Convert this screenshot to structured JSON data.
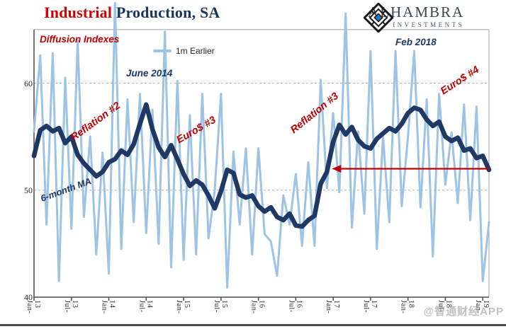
{
  "header": {
    "title_red": "Industrial",
    "title_rest": " Production, SA"
  },
  "logo": {
    "name": "ALHAMBRA",
    "sub": "INVESTMENTS"
  },
  "legend": {
    "label": "1m Earlier"
  },
  "annotations": {
    "diffusion_indexes": "Diffusion Indexes",
    "june_2014": "June 2014",
    "feb_2018": "Feb 2018",
    "reflation_2": "Reflation #2",
    "euro_3": "Euro$ #3",
    "reflation_3": "Reflation #3",
    "euro_4": "Euro$ #4",
    "six_month_ma": "6-month MA"
  },
  "watermark": "@智通财经APP",
  "colors": {
    "light_blue": "#9DC3E6",
    "navy": "#1F3864",
    "red_annotation": "#C00000",
    "arrow_red": "#C00000",
    "title_red": "#D40000",
    "title_navy": "#17365D",
    "gridline": "#B3B3B3",
    "axis": "#4D4D4D",
    "frame": "#A0A0A0"
  },
  "chart_data": {
    "type": "line",
    "title": "Industrial Production, SA",
    "subtitle": "Diffusion Indexes",
    "x_start": "Jan-2013",
    "x_end": "Feb-2019",
    "x_tick_labels": [
      "Jan-13",
      "Jul-13",
      "Jan-14",
      "Jul-14",
      "Jan-15",
      "Jul-15",
      "Jan-16",
      "Jul-16",
      "Jan-17",
      "Jul-17",
      "Jan-18",
      "Jul-18",
      "Jan-19"
    ],
    "y_ticks": [
      40,
      50,
      60
    ],
    "ylim": [
      40,
      65
    ],
    "gridlines": [
      50,
      60
    ],
    "grid": "dashed-horizontal",
    "legend_position": "top-center",
    "series": [
      {
        "name": "1m Earlier",
        "color": "#9DC3E6",
        "width": 3,
        "values": [
          55.5,
          62.6,
          46.8,
          62.8,
          41.5,
          60.5,
          46.4,
          64.0,
          47.5,
          55.0,
          44.0,
          53.5,
          42.2,
          67.5,
          44.5,
          58.5,
          47.0,
          59.0,
          46.0,
          57.5,
          45.0,
          64.8,
          42.8,
          60.2,
          43.5,
          57.0,
          44.0,
          59.0,
          45.5,
          50.0,
          59.0,
          40.9,
          53.6,
          46.8,
          53.9,
          44.0,
          53.9,
          45.9,
          45.2,
          42.0,
          49.5,
          46.8,
          51.5,
          44.8,
          52.6,
          44.8,
          60.3,
          50.2,
          57.2,
          49.8,
          66.5,
          46.5,
          55.5,
          47.8,
          63.0,
          44.5,
          55.0,
          47.0,
          63.0,
          48.5,
          55.0,
          63.0,
          48.4,
          58.5,
          43.8,
          59.0,
          50.5,
          55.4,
          48.8,
          58.0,
          47.2,
          57.8,
          41.5,
          47.0
        ]
      },
      {
        "name": "6-month MA",
        "color": "#1F3864",
        "width": 6.5,
        "values": [
          53.2,
          55.6,
          56.0,
          55.5,
          55.8,
          54.4,
          55.0,
          53.3,
          52.5,
          51.9,
          51.3,
          51.7,
          52.6,
          52.9,
          53.7,
          53.3,
          54.3,
          56.2,
          58.0,
          55.7,
          54.0,
          53.1,
          54.2,
          52.9,
          51.5,
          50.4,
          50.9,
          50.5,
          49.5,
          48.3,
          49.9,
          51.9,
          51.6,
          49.6,
          49.3,
          49.5,
          48.5,
          48.0,
          48.4,
          47.5,
          47.2,
          47.8,
          46.7,
          46.6,
          47.2,
          47.6,
          50.6,
          51.7,
          54.5,
          56.1,
          55.2,
          55.9,
          54.7,
          54.1,
          53.9,
          54.8,
          55.3,
          55.8,
          55.5,
          56.2,
          57.2,
          57.7,
          57.5,
          56.6,
          56.0,
          56.4,
          55.0,
          54.6,
          54.9,
          53.7,
          53.9,
          53.0,
          53.2,
          51.9
        ]
      }
    ],
    "arrow": {
      "from_x_month": 73,
      "to_x_month": 47.8,
      "at_value": 52.0,
      "direction": "left",
      "color": "#C00000"
    }
  }
}
